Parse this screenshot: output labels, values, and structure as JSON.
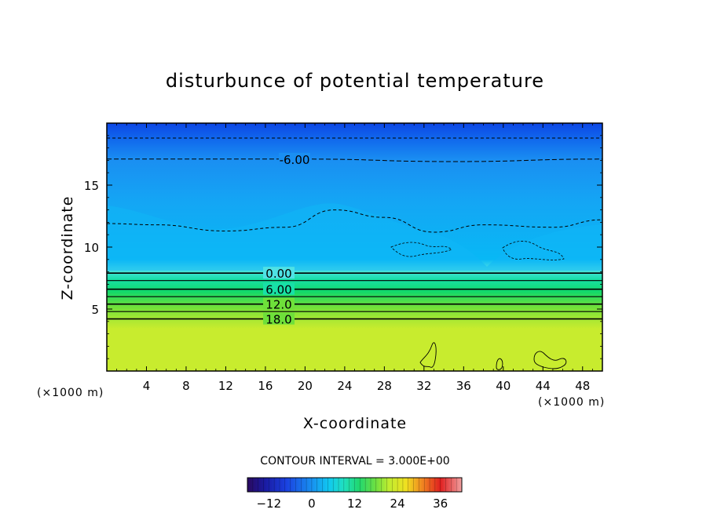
{
  "chart_data": {
    "type": "heatmap",
    "title": "disturbunce of potential temperature",
    "xlabel": "X-coordinate",
    "ylabel": "Z-coordinate",
    "x_unit": "(×1000 m)",
    "z_unit": "(×1000 m)",
    "xlim": [
      0,
      50
    ],
    "ylim": [
      0,
      20
    ],
    "x_ticks": [
      "4",
      "8",
      "12",
      "16",
      "20",
      "24",
      "28",
      "32",
      "36",
      "40",
      "44",
      "48"
    ],
    "y_ticks": [
      "5",
      "10",
      "15"
    ],
    "contour_interval_text": "CONTOUR INTERVAL = 3.000E+00",
    "colorbar": {
      "min": -18,
      "max": 42,
      "ticks": [
        "-12",
        "0",
        "12",
        "24",
        "36"
      ]
    },
    "contour_labels": [
      "-6.00",
      "0.00",
      "6.00",
      "12.0",
      "18.0"
    ],
    "contours": [
      {
        "level": -9,
        "style": "dashed",
        "z": [
          [
            0,
            18.8
          ],
          [
            50,
            18.8
          ]
        ]
      },
      {
        "level": -6,
        "style": "dashed",
        "label": "-6.00",
        "z": [
          [
            0,
            17.1
          ],
          [
            20,
            17.1
          ],
          [
            35,
            16.9
          ],
          [
            50,
            17.1
          ]
        ]
      },
      {
        "level": -3,
        "style": "dashed",
        "z": [
          [
            0,
            11.9
          ],
          [
            5,
            11.8
          ],
          [
            12,
            11.3
          ],
          [
            18,
            11.6
          ],
          [
            23,
            13.0
          ],
          [
            28,
            12.4
          ],
          [
            33,
            11.2
          ],
          [
            38,
            11.8
          ],
          [
            45,
            11.6
          ],
          [
            50,
            12.2
          ]
        ]
      },
      {
        "level": 0,
        "style": "solid",
        "label": "0.00",
        "z": [
          [
            0,
            7.9
          ],
          [
            50,
            7.9
          ]
        ]
      },
      {
        "level": 3,
        "style": "solid",
        "z": [
          [
            0,
            7.3
          ],
          [
            50,
            7.3
          ]
        ]
      },
      {
        "level": 6,
        "style": "solid",
        "label": "6.00",
        "z": [
          [
            0,
            6.6
          ],
          [
            50,
            6.6
          ]
        ]
      },
      {
        "level": 9,
        "style": "solid",
        "z": [
          [
            0,
            6.0
          ],
          [
            50,
            6.0
          ]
        ]
      },
      {
        "level": 12,
        "style": "solid",
        "label": "12.0",
        "z": [
          [
            0,
            5.4
          ],
          [
            50,
            5.4
          ]
        ]
      },
      {
        "level": 15,
        "style": "solid",
        "z": [
          [
            0,
            4.8
          ],
          [
            50,
            4.8
          ]
        ]
      },
      {
        "level": 18,
        "style": "solid",
        "label": "18.0",
        "z": [
          [
            0,
            4.2
          ],
          [
            50,
            4.2
          ]
        ]
      }
    ],
    "colors": {
      "top": "#0d46e6",
      "upper": "#1a8ff2",
      "mid_upper": "#08b8f5",
      "near_zero": "#4fe2e5",
      "cyan_green": "#18e0a8",
      "green": "#12d86a",
      "light_green": "#6ee03a",
      "lower": "#c8ec2e"
    }
  }
}
